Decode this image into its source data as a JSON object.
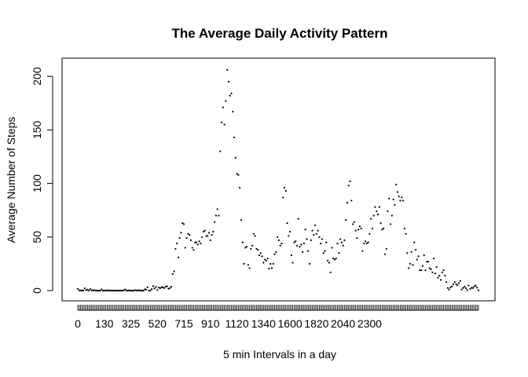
{
  "chart_data": {
    "type": "scatter",
    "title": "The Average Daily Activity Pattern",
    "xlabel": "5 min Intervals in a day",
    "ylabel": "Average Number of Steps",
    "x_is_categorical": true,
    "x_tick_labels": [
      "0",
      "130",
      "325",
      "520",
      "715",
      "910",
      "1120",
      "1340",
      "1600",
      "1820",
      "2040",
      "2300"
    ],
    "y_ticks": [
      0,
      50,
      100,
      150,
      200
    ],
    "ylim": [
      0,
      206
    ],
    "grid": false,
    "legend": "none",
    "series": [
      {
        "x": [
          0,
          5,
          10,
          15,
          20,
          25,
          30,
          35,
          40,
          45,
          50,
          55,
          100,
          105,
          110,
          115,
          120,
          125,
          130,
          135,
          140,
          145,
          150,
          155,
          200,
          205,
          210,
          215,
          220,
          225,
          230,
          235,
          240,
          245,
          250,
          255,
          300,
          305,
          310,
          315,
          320,
          325,
          330,
          335,
          340,
          345,
          350,
          355,
          400,
          405,
          410,
          415,
          420,
          425,
          430,
          435,
          440,
          445,
          450,
          455,
          500,
          505,
          510,
          515,
          520,
          525,
          530,
          535,
          540,
          545,
          550,
          555,
          600,
          605,
          610,
          615,
          620,
          625,
          630,
          635,
          640,
          645,
          650,
          655,
          700,
          705,
          710,
          715,
          720,
          725,
          730,
          735,
          740,
          745,
          750,
          755,
          800,
          805,
          810,
          815,
          820,
          825,
          830,
          835,
          840,
          845,
          850,
          855,
          900,
          905,
          910,
          915,
          920,
          925,
          930,
          935,
          940,
          945,
          950,
          955,
          1000,
          1005,
          1010,
          1015,
          1020,
          1025,
          1030,
          1035,
          1040,
          1045,
          1050,
          1055,
          1100,
          1105,
          1110,
          1115,
          1120,
          1125,
          1130,
          1135,
          1140,
          1145,
          1150,
          1155,
          1200,
          1205,
          1210,
          1215,
          1220,
          1225,
          1230,
          1235,
          1240,
          1245,
          1250,
          1255,
          1300,
          1305,
          1310,
          1315,
          1320,
          1325,
          1330,
          1335,
          1340,
          1345,
          1350,
          1355,
          1400,
          1405,
          1410,
          1415,
          1420,
          1425,
          1430,
          1435,
          1440,
          1445,
          1450,
          1455,
          1500,
          1505,
          1510,
          1515,
          1520,
          1525,
          1530,
          1535,
          1540,
          1545,
          1550,
          1555,
          1600,
          1605,
          1610,
          1615,
          1620,
          1625,
          1630,
          1635,
          1640,
          1645,
          1650,
          1655,
          1700,
          1705,
          1710,
          1715,
          1720,
          1725,
          1730,
          1735,
          1740,
          1745,
          1750,
          1755,
          1800,
          1805,
          1810,
          1815,
          1820,
          1825,
          1830,
          1835,
          1840,
          1845,
          1850,
          1855,
          1900,
          1905,
          1910,
          1915,
          1920,
          1925,
          1930,
          1935,
          1940,
          1945,
          1950,
          1955,
          2000,
          2005,
          2010,
          2015,
          2020,
          2025,
          2030,
          2035,
          2040,
          2045,
          2050,
          2055,
          2100,
          2105,
          2110,
          2115,
          2120,
          2125,
          2130,
          2135,
          2140,
          2145,
          2150,
          2155,
          2200,
          2205,
          2210,
          2215,
          2220,
          2225,
          2230,
          2235,
          2240,
          2245,
          2250,
          2255,
          2300,
          2305,
          2310,
          2315,
          2320,
          2325,
          2330,
          2335,
          2340,
          2345,
          2350,
          2355
        ],
        "y": [
          1.7,
          0.3,
          0.1,
          0.2,
          0.1,
          2.1,
          0.5,
          0.9,
          0.0,
          1.5,
          0.3,
          0.1,
          0.4,
          0.0,
          0.0,
          0.0,
          0.0,
          1.1,
          0.0,
          0.1,
          0.1,
          0.1,
          0.3,
          0.0,
          0.0,
          0.0,
          0.0,
          0.0,
          0.0,
          0.0,
          0.0,
          0.0,
          0.0,
          0.3,
          1.1,
          0.0,
          0.0,
          0.2,
          0.0,
          0.0,
          0.0,
          0.4,
          0.0,
          0.2,
          0.3,
          0.1,
          0.0,
          0.0,
          1.2,
          0.9,
          3.1,
          0.1,
          0.0,
          1.4,
          4.1,
          2.0,
          3.5,
          0.6,
          2.8,
          2.3,
          3.2,
          3.0,
          2.4,
          3.8,
          4.0,
          1.7,
          2.4,
          3.6,
          15.5,
          18.0,
          39.0,
          44.0,
          31.0,
          49.0,
          54.0,
          63.0,
          62.0,
          40.0,
          49.0,
          53.0,
          52.0,
          47.0,
          40.0,
          38.0,
          45.0,
          45.0,
          43.0,
          46.0,
          44.0,
          50.0,
          55.0,
          56.0,
          51.0,
          51.0,
          54.0,
          47.0,
          52.0,
          55.0,
          64.0,
          70.0,
          76.0,
          70.0,
          130.0,
          157.0,
          171.0,
          155.0,
          177.0,
          206.0,
          195.0,
          182.0,
          184.0,
          167.0,
          143.0,
          124.0,
          109.0,
          108.0,
          96.0,
          66.0,
          45.0,
          25.0,
          40.0,
          41.0,
          24.0,
          21.0,
          39.0,
          42.0,
          53.0,
          51.0,
          39.0,
          38.0,
          33.0,
          35.0,
          32.0,
          26.0,
          29.0,
          28.0,
          30.0,
          20.5,
          25.0,
          21.0,
          25.0,
          34.0,
          36.0,
          50.0,
          47.0,
          42.0,
          44.0,
          87.0,
          96.0,
          93.0,
          63.0,
          51.0,
          55.0,
          33.0,
          26.0,
          45.0,
          46.0,
          42.0,
          67.0,
          41.0,
          43.0,
          36.0,
          44.0,
          57.0,
          48.0,
          37.0,
          25.0,
          47.0,
          56.0,
          52.0,
          61.0,
          53.0,
          56.0,
          50.0,
          44.0,
          48.0,
          35.0,
          37.0,
          45.0,
          28.0,
          26.0,
          17.0,
          40.0,
          30.0,
          29.0,
          30.0,
          44.0,
          35.0,
          48.0,
          45.0,
          42.0,
          47.0,
          66.0,
          82.0,
          98.0,
          102.0,
          84.0,
          62.0,
          64.0,
          56.0,
          49.0,
          57.0,
          60.0,
          58.0,
          37.0,
          44.0,
          46.0,
          44.0,
          45.0,
          53.0,
          67.0,
          58.0,
          70.0,
          78.0,
          74.0,
          71.0,
          78.0,
          63.0,
          57.0,
          58.0,
          34.0,
          39.0,
          74.0,
          86.0,
          62.0,
          70.0,
          85.0,
          80.0,
          99.0,
          92.0,
          88.0,
          84.0,
          87.0,
          84.0,
          58.0,
          53.0,
          35.0,
          21.0,
          25.0,
          36.0,
          24.0,
          45.0,
          38.0,
          29.0,
          32.0,
          19.0,
          19.0,
          23.0,
          33.0,
          19.0,
          27.0,
          27.0,
          21.0,
          20.0,
          17.0,
          30.0,
          16.0,
          22.0,
          12.0,
          14.0,
          10.0,
          17.0,
          19.0,
          14.0,
          8.0,
          2.5,
          1.0,
          3.0,
          4.0,
          6.0,
          8.0,
          6.0,
          5.0,
          7.0,
          9.0,
          1.0,
          2.5,
          3.8,
          2.2,
          0.4,
          4.8,
          1.6,
          2.6,
          2.5,
          3.9,
          4.7,
          2.8,
          0.3
        ]
      }
    ]
  }
}
